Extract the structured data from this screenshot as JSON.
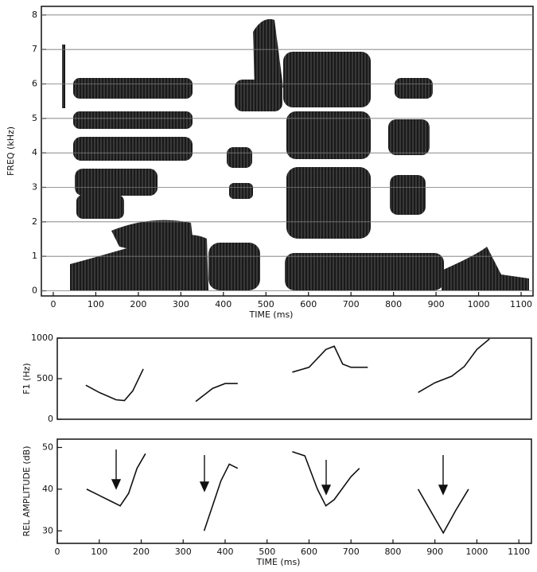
{
  "chart_data": [
    {
      "type": "spectrogram",
      "xlabel": "TIME (ms)",
      "ylabel": "FREQ (kHz)",
      "xlim": [
        -28,
        1128
      ],
      "ylim": [
        -0.15,
        8.25
      ],
      "xticks": [
        0,
        100,
        200,
        300,
        400,
        500,
        600,
        700,
        800,
        900,
        1000,
        1100
      ],
      "yticks": [
        0,
        1,
        2,
        3,
        4,
        5,
        6,
        7,
        8
      ],
      "grid": true
    },
    {
      "type": "line",
      "ylabel": "F1 (Hz)",
      "x": [
        68,
        100,
        140,
        160,
        180,
        205,
        null,
        330,
        370,
        400,
        430,
        null,
        560,
        600,
        640,
        660,
        680,
        700,
        740,
        null,
        860,
        900,
        940,
        970,
        1000,
        1030
      ],
      "values": [
        420,
        330,
        240,
        230,
        350,
        620,
        null,
        220,
        380,
        440,
        440,
        null,
        580,
        640,
        860,
        900,
        680,
        640,
        640,
        null,
        330,
        450,
        530,
        650,
        860,
        990
      ],
      "xlim": [
        0,
        1130
      ],
      "ylim": [
        0,
        1000
      ],
      "yticks": [
        0,
        500,
        1000
      ],
      "color": "#111111"
    },
    {
      "type": "line",
      "ylabel": "REL AMPLITUDE (dB)",
      "xlabel": "TIME (ms)",
      "x": [
        70,
        100,
        130,
        150,
        170,
        190,
        210,
        null,
        350,
        370,
        390,
        410,
        430,
        null,
        560,
        590,
        620,
        640,
        660,
        700,
        720,
        null,
        860,
        900,
        920,
        950,
        980
      ],
      "values": [
        40,
        38.5,
        37,
        36,
        39,
        45,
        48.5,
        null,
        30,
        36,
        42,
        46,
        45,
        null,
        49,
        48,
        40,
        36,
        37.5,
        43,
        45,
        null,
        40,
        33,
        29.5,
        35,
        40
      ],
      "xlim": [
        0,
        1130
      ],
      "ylim": [
        27,
        52
      ],
      "yticks": [
        30,
        40,
        50
      ],
      "xticks": [
        0,
        100,
        200,
        300,
        400,
        500,
        600,
        700,
        800,
        900,
        1000,
        1100
      ],
      "color": "#111111"
    }
  ]
}
